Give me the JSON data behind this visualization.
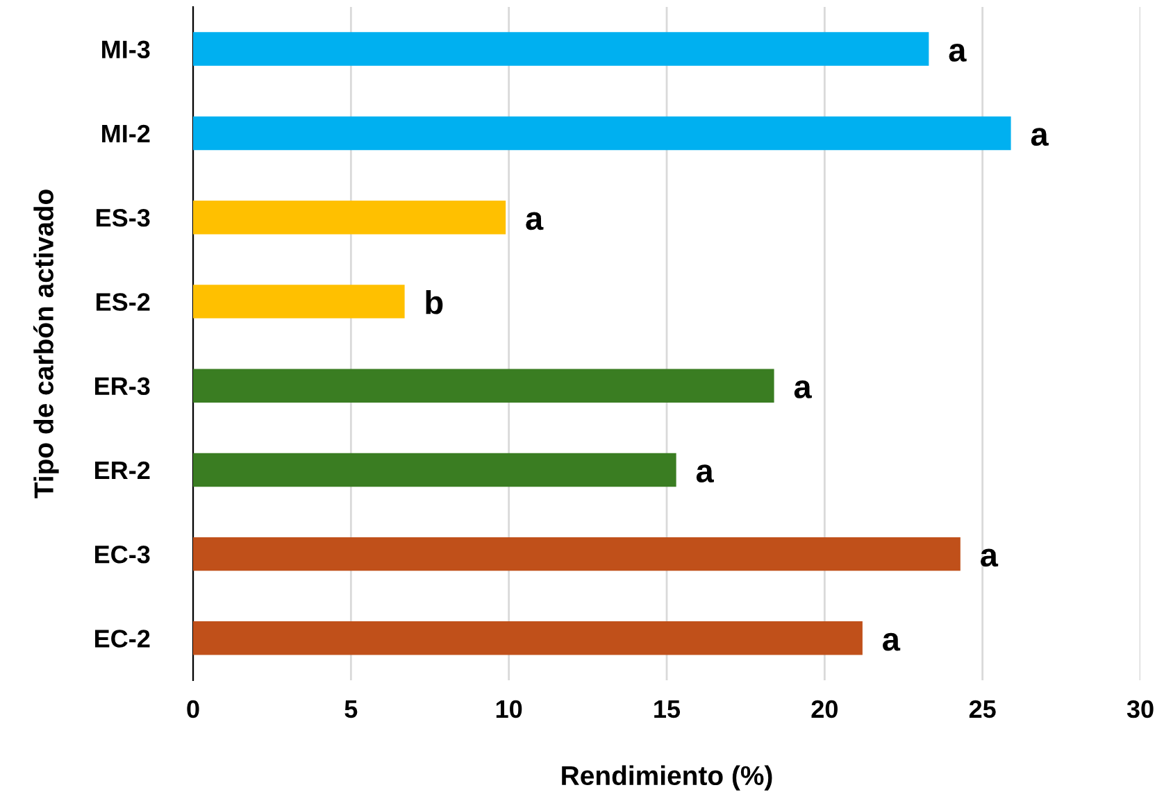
{
  "chart_data": {
    "type": "bar",
    "orientation": "horizontal",
    "categories": [
      "MI-3",
      "MI-2",
      "ES-3",
      "ES-2",
      "ER-3",
      "ER-2",
      "EC-3",
      "EC-2"
    ],
    "values": [
      23.3,
      25.9,
      9.9,
      6.7,
      18.4,
      15.3,
      24.3,
      21.2
    ],
    "colors": [
      "#00b0f0",
      "#00b0f0",
      "#ffc000",
      "#ffc000",
      "#3a7d22",
      "#3a7d22",
      "#c0501a",
      "#c0501a"
    ],
    "xlabel": "Rendimiento (%)",
    "ylabel": "Tipo de carbón activado",
    "xlim": [
      0,
      30
    ],
    "xticks": [
      0,
      5,
      10,
      15,
      20,
      25,
      30
    ],
    "grid": "x",
    "legend": false,
    "annotations": [
      {
        "text": "a",
        "x": 23.3,
        "y": "MI-3"
      },
      {
        "text": "a",
        "x": 25.9,
        "y": "MI-2"
      },
      {
        "text": "a",
        "x": 9.9,
        "y": "ES-3"
      },
      {
        "text": "b",
        "x": 6.7,
        "y": "ES-2"
      },
      {
        "text": "a",
        "x": 18.4,
        "y": "ER-3"
      },
      {
        "text": "a",
        "x": 15.3,
        "y": "ER-2"
      },
      {
        "text": "a",
        "x": 24.3,
        "y": "EC-3"
      },
      {
        "text": "a",
        "x": 21.2,
        "y": "EC-2"
      }
    ]
  }
}
